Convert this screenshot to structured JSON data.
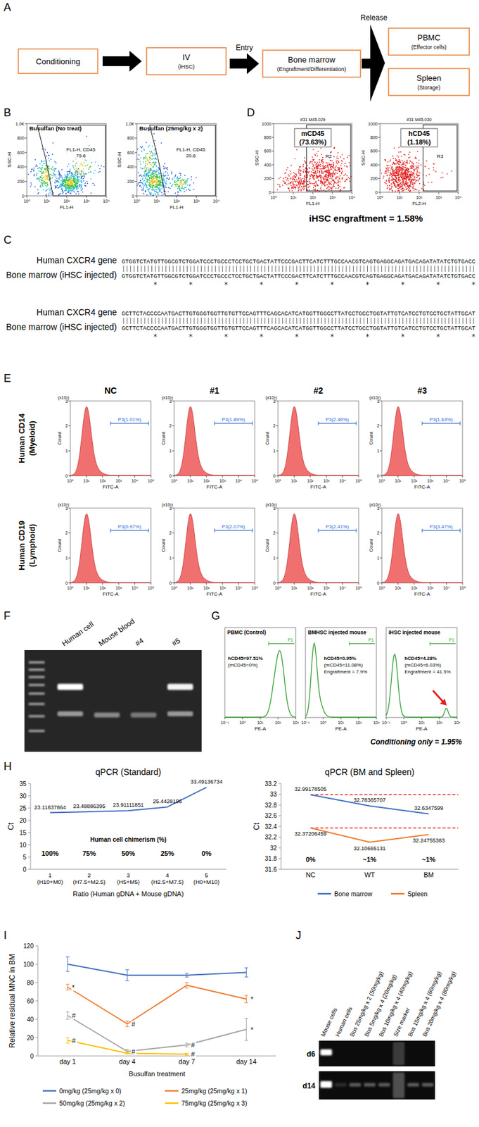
{
  "panels": {
    "A": {
      "letter": "A",
      "nodes": [
        {
          "label": "Conditioning"
        },
        {
          "label": "IV",
          "sublabel": "(iHSC)"
        },
        {
          "label": "Bone marrow",
          "sublabel": "(Engraftment/Differentiation)"
        },
        {
          "label": "PBMC",
          "sublabel": "(Effector cells)"
        },
        {
          "label": "Spleen",
          "sublabel": "(Storage)"
        }
      ],
      "edge_labels": [
        "Entry",
        "Release"
      ]
    },
    "B": {
      "letter": "B",
      "x_label": "FL1-H",
      "y_label": "SSC-H",
      "xticks": [
        "10⁰",
        "10¹",
        "10²",
        "10³",
        "10⁴"
      ],
      "yticks": [
        "0",
        "200",
        "400",
        "600",
        "800",
        "1.0K"
      ],
      "plots": [
        {
          "title": "Busulfan (No treat)",
          "gate_label": "FL1-H, CD45",
          "gate_value": "79.6"
        },
        {
          "title": "Busulfan (25mg/kg x 2)",
          "gate_label": "FL1-H, CD45",
          "gate_value": "20.6"
        }
      ]
    },
    "C": {
      "letter": "C",
      "rows": [
        {
          "label": "Human CXCR4 gene"
        },
        {
          "label": "Bone marrow (iHSC injected)"
        }
      ],
      "blocks": [
        {
          "reference": "GTGGTCTATGTTGGCGTCTGGATCCCTGCCCTCCTGCTGACTATTCCCGACTTCATCTTTGCCAACGTCAGTGAGGCAGATGACAGATATATCTGTGACC",
          "sample": "GTGGTCTATGTTGGCGTCTGGATCCCTGCCCTCCTGCTGACTATTCCCGACTTCATCTTTGCCAACGTCAGTGAGGCAGATGACAGATATATCTGTGACC"
        },
        {
          "reference": "GCTTCTACCCCAATGACTTGTGGGTGGTTGTGTTCCAGTTTCAGCACATCATGGTTGGCCTTATCCTGCCTGGTATTGTCATCCTGTCCTGCTATTGCAT",
          "sample": "GCTTCTACCCCAATGACTTGTGGGTGGTTGTGTTCCAGTTTCAGCACATCATGGTTGGCCTTATCCTGCCTGGTATTGTCATCCTGTCCTGCTATTGCAT"
        }
      ]
    },
    "D": {
      "letter": "D",
      "x_labels": [
        "FL1-H",
        "FL2-H"
      ],
      "y_label": "SSC-H",
      "xticks": [
        "10⁰",
        "10¹",
        "10²",
        "10³",
        "10⁴"
      ],
      "yticks": [
        "0",
        "200",
        "400",
        "600",
        "800",
        "1000"
      ],
      "plots": [
        {
          "title": "#31 M45.029",
          "population": "mCD45",
          "percent": "(73.63%)",
          "gate": "R2"
        },
        {
          "title": "#31 M45.030",
          "population": "hCD45",
          "percent": "(1.18%)",
          "gate": "R3"
        }
      ],
      "caption": "iHSC engraftment = 1.58%"
    },
    "E": {
      "letter": "E",
      "columns": [
        "NC",
        "#1",
        "#2",
        "#3"
      ],
      "rows": [
        {
          "label": "Human CD14",
          "sublabel": "(Myeloid)",
          "gates": [
            "P3(1.01%)",
            "P3(1.89%)",
            "P3(2.46%)",
            "P3(1.63%)"
          ]
        },
        {
          "label": "Human CD19",
          "sublabel": "(Lymphoid)",
          "gates": [
            "P3(0.97%)",
            "P3(2.07%)",
            "P3(2.41%)",
            "P3(3.47%)"
          ]
        }
      ],
      "x_label": "FITC-A",
      "y_label": "Count",
      "y_unit": "(x10³)",
      "xticks": [
        "10⁰",
        "10¹",
        "10²",
        "10³",
        "10⁴",
        "10⁵"
      ],
      "yticks": [
        "0",
        "1",
        "2",
        "3"
      ]
    },
    "F": {
      "letter": "F",
      "lanes": [
        "Human cell",
        "Mouse blood",
        "#4",
        "#5"
      ]
    },
    "G": {
      "letter": "G",
      "x_label": "PE-A",
      "xticks": [
        "10⁻¹",
        "10⁰",
        "10¹",
        "10²",
        "10³"
      ],
      "gate": "P1",
      "plots": [
        {
          "title": "PBMC (Control)",
          "lines": [
            "hCD45=97.51%",
            "(mCD45=0%)"
          ]
        },
        {
          "title": "BMHSC injected mouse",
          "lines": [
            "hCD45=0.95%",
            "(mCD45=11.08%)",
            "Engraftment = 7.9%"
          ]
        },
        {
          "title": "iHSC injected mouse",
          "lines": [
            "hCD45=4.28%",
            "(mCD45=6.03%)",
            "Engraftment = 41.5%"
          ]
        }
      ],
      "caption": "Conditioning only = 1.95%"
    },
    "H": {
      "letter": "H"
    },
    "I": {
      "letter": "I"
    },
    "J": {
      "letter": "J",
      "lanes": [
        "Mouse cells",
        "Human cells",
        "Bus 25mg/kg x 2 (50mg/kg)",
        "Bus 5mg/kg x 4 (20mg/kg)",
        "Bus 10mg/kg x 4 (40mg/kg)",
        "Size marker",
        "Bus 15mg/kg x 4 (60mg/kg)",
        "Bus 20mg/kg x 4 (80mg/kg)"
      ],
      "rows": [
        "d6",
        "d14"
      ]
    }
  },
  "chart_data": [
    {
      "type": "line",
      "title": "qPCR (Standard)",
      "categories": [
        "1 (H10+M0)",
        "2 (H7.5+M2.5)",
        "3 (H5+M5)",
        "4 (H2.5+M7.5)",
        "5 (H0+M10)"
      ],
      "values": [
        23.11837864,
        23.48886395,
        23.91111851,
        25.4428196,
        33.49136734
      ],
      "color": "#4472c4",
      "ylim": [
        0,
        35
      ],
      "yticks": [
        0,
        5,
        10,
        15,
        20,
        25,
        30,
        35
      ],
      "y_label": "Ct",
      "x_label": "Ratio (Human gDNA + Mouse gDNA)",
      "annotation_title": "Human cell chimerism (%)",
      "annotations": [
        "100%",
        "75%",
        "50%",
        "25%",
        "0%"
      ],
      "data_labels": true,
      "grid": false
    },
    {
      "type": "line",
      "title": "qPCR (BM and Spleen)",
      "categories": [
        "NC",
        "WT",
        "BM"
      ],
      "series": [
        {
          "name": "Bone marrow",
          "color": "#4472c4",
          "values": [
            32.99178505,
            32.78365707,
            32.6347599
          ]
        },
        {
          "name": "Spleen",
          "color": "#ed7d31",
          "values": [
            32.37206459,
            32.10665131,
            32.24755383
          ]
        }
      ],
      "ylim": [
        31.6,
        33.2
      ],
      "yticks": [
        31.6,
        31.8,
        32,
        32.2,
        32.4,
        32.6,
        32.8,
        33,
        33.2
      ],
      "y_label": "Ct",
      "annotations": [
        "0%",
        "~1%",
        "~1%"
      ],
      "reference_lines": [
        32.99178505,
        32.37206459
      ],
      "data_labels": true,
      "legend": "bottom",
      "grid": false
    },
    {
      "type": "line",
      "categories": [
        "day 1",
        "day 4",
        "day 7",
        "day 14"
      ],
      "series": [
        {
          "name": "0mg/kg (25mg/kg x 0)",
          "color": "#4472c4",
          "values": [
            100,
            88,
            88,
            91
          ],
          "errors": [
            8,
            6,
            2,
            5
          ]
        },
        {
          "name": "25mg/kg (25mg/kg x 1)",
          "color": "#ed7d31",
          "values": [
            75,
            35,
            77,
            62
          ],
          "errors": [
            3,
            3,
            3,
            4
          ],
          "significance": [
            "*",
            "#",
            null,
            "*"
          ]
        },
        {
          "name": "50mg/kg (25mg/kg x 2)",
          "color": "#a5a5a5",
          "values": [
            44,
            5,
            12,
            29
          ],
          "errors": [
            4,
            2,
            2,
            12
          ],
          "significance": [
            "#",
            "#",
            "#",
            "*"
          ]
        },
        {
          "name": "75mg/kg (25mg/kg x 3)",
          "color": "#ffc000",
          "values": [
            17,
            3,
            2,
            null
          ],
          "errors": [
            3,
            1,
            1,
            null
          ],
          "significance": [
            "#",
            null,
            "#",
            null
          ]
        }
      ],
      "ylim": [
        0,
        120
      ],
      "yticks": [
        0,
        20,
        40,
        60,
        80,
        100,
        120
      ],
      "x_label": "Busulfan treatment",
      "y_label": "Relative residual MNC in BM",
      "legend": "bottom",
      "grid": false
    }
  ]
}
